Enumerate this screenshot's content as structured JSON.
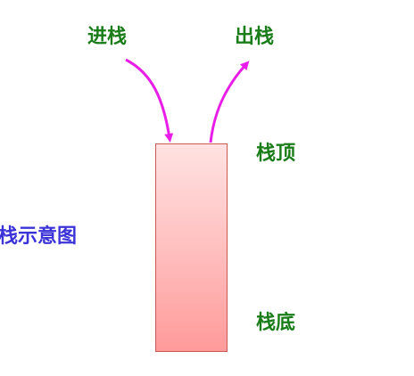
{
  "diagram": {
    "title": "栈示意图",
    "push_label": "进栈",
    "pop_label": "出栈",
    "top_label": "栈顶",
    "bottom_label": "栈底",
    "colors": {
      "label_green": "#1a7d1a",
      "title_blue": "#3b33d8",
      "arrow_magenta": "#e81ee8",
      "stack_fill_top": "#ffe2e2",
      "stack_fill_bottom": "#ff9a9a",
      "stack_border": "#c85a5a"
    }
  }
}
